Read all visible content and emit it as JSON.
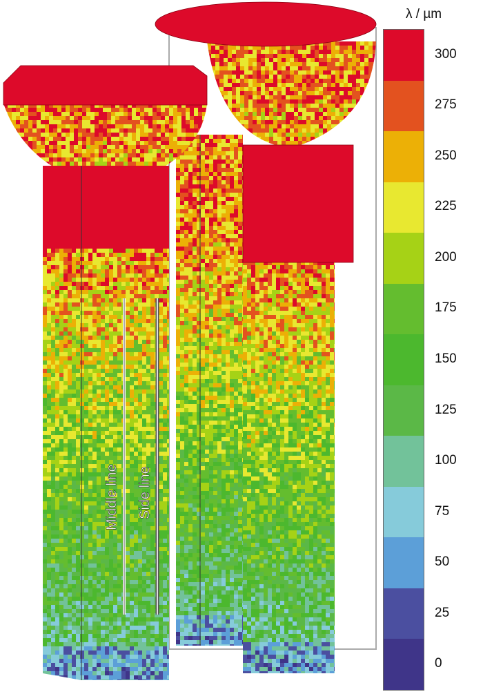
{
  "colorbar": {
    "unit_label": "λ / µm",
    "ticks": [
      "300",
      "275",
      "250",
      "225",
      "200",
      "175",
      "150",
      "125",
      "100",
      "75",
      "50",
      "25",
      "0"
    ],
    "colors": [
      "#dd0a2a",
      "#e3521f",
      "#ecb006",
      "#e8e830",
      "#a6d216",
      "#64bd2f",
      "#4cb82e",
      "#5bb847",
      "#72c29a",
      "#86cbda",
      "#5c9fd8",
      "#4b4fa0",
      "#3f3589"
    ],
    "range": [
      0,
      300
    ]
  },
  "annotations": {
    "middle_line": "Middle line",
    "side_line": "Side line"
  },
  "chart_data": {
    "type": "heatmap",
    "colorbar_label": "λ / µm",
    "colorbar_range": [
      0,
      300
    ],
    "colorbar_ticks": [
      0,
      25,
      50,
      75,
      100,
      125,
      150,
      175,
      200,
      225,
      250,
      275,
      300
    ],
    "annotations": [
      "Middle line",
      "Side line"
    ]
  }
}
